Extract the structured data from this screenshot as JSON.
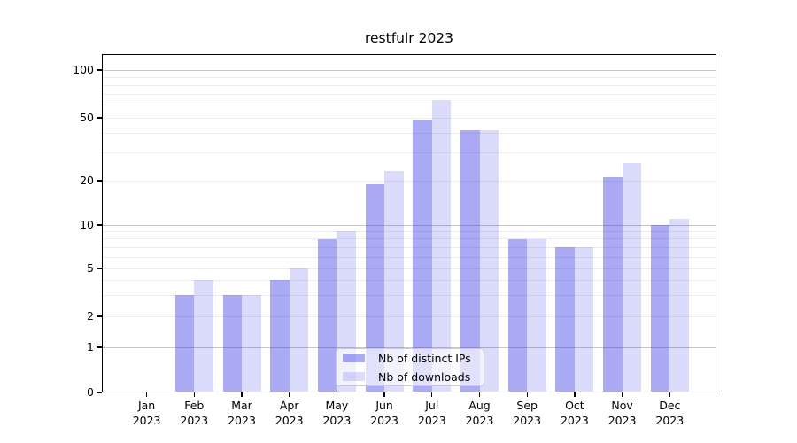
{
  "title": "restfulr 2023",
  "legend": {
    "items": [
      {
        "label": "Nb of distinct IPs"
      },
      {
        "label": "Nb of downloads"
      }
    ]
  },
  "chart_data": {
    "type": "bar",
    "title": "restfulr 2023",
    "categories": [
      {
        "month": "Jan",
        "year": "2023"
      },
      {
        "month": "Feb",
        "year": "2023"
      },
      {
        "month": "Mar",
        "year": "2023"
      },
      {
        "month": "Apr",
        "year": "2023"
      },
      {
        "month": "May",
        "year": "2023"
      },
      {
        "month": "Jun",
        "year": "2023"
      },
      {
        "month": "Jul",
        "year": "2023"
      },
      {
        "month": "Aug",
        "year": "2023"
      },
      {
        "month": "Sep",
        "year": "2023"
      },
      {
        "month": "Oct",
        "year": "2023"
      },
      {
        "month": "Nov",
        "year": "2023"
      },
      {
        "month": "Dec",
        "year": "2023"
      }
    ],
    "series": [
      {
        "name": "Nb of distinct IPs",
        "values": [
          0,
          3,
          3,
          4,
          8,
          19,
          48,
          42,
          8,
          7,
          21,
          10
        ]
      },
      {
        "name": "Nb of downloads",
        "values": [
          0,
          4,
          3,
          5,
          9,
          23,
          65,
          42,
          8,
          7,
          26,
          11
        ]
      }
    ],
    "xlabel": "",
    "ylabel": "",
    "y_axis": {
      "scale": "log-like (0 baseline, log above 1)",
      "tick_labels": [
        0,
        1,
        2,
        5,
        10,
        20,
        50,
        100
      ],
      "major_gridlines": [
        1,
        10,
        100
      ],
      "minor_gridlines": [
        2,
        3,
        4,
        5,
        6,
        7,
        8,
        9,
        20,
        30,
        40,
        50,
        60,
        70,
        80,
        90
      ],
      "ylim_top_approx": 120
    },
    "legend_position": "bottom-center-inside",
    "grid": true,
    "colors": {
      "series_colors": [
        "rgba(43,43,231,0.40)",
        "rgba(43,43,231,0.17)"
      ],
      "grid_minor": "#ececec",
      "grid_major": "#c6c6c6",
      "spine": "#000000"
    }
  }
}
